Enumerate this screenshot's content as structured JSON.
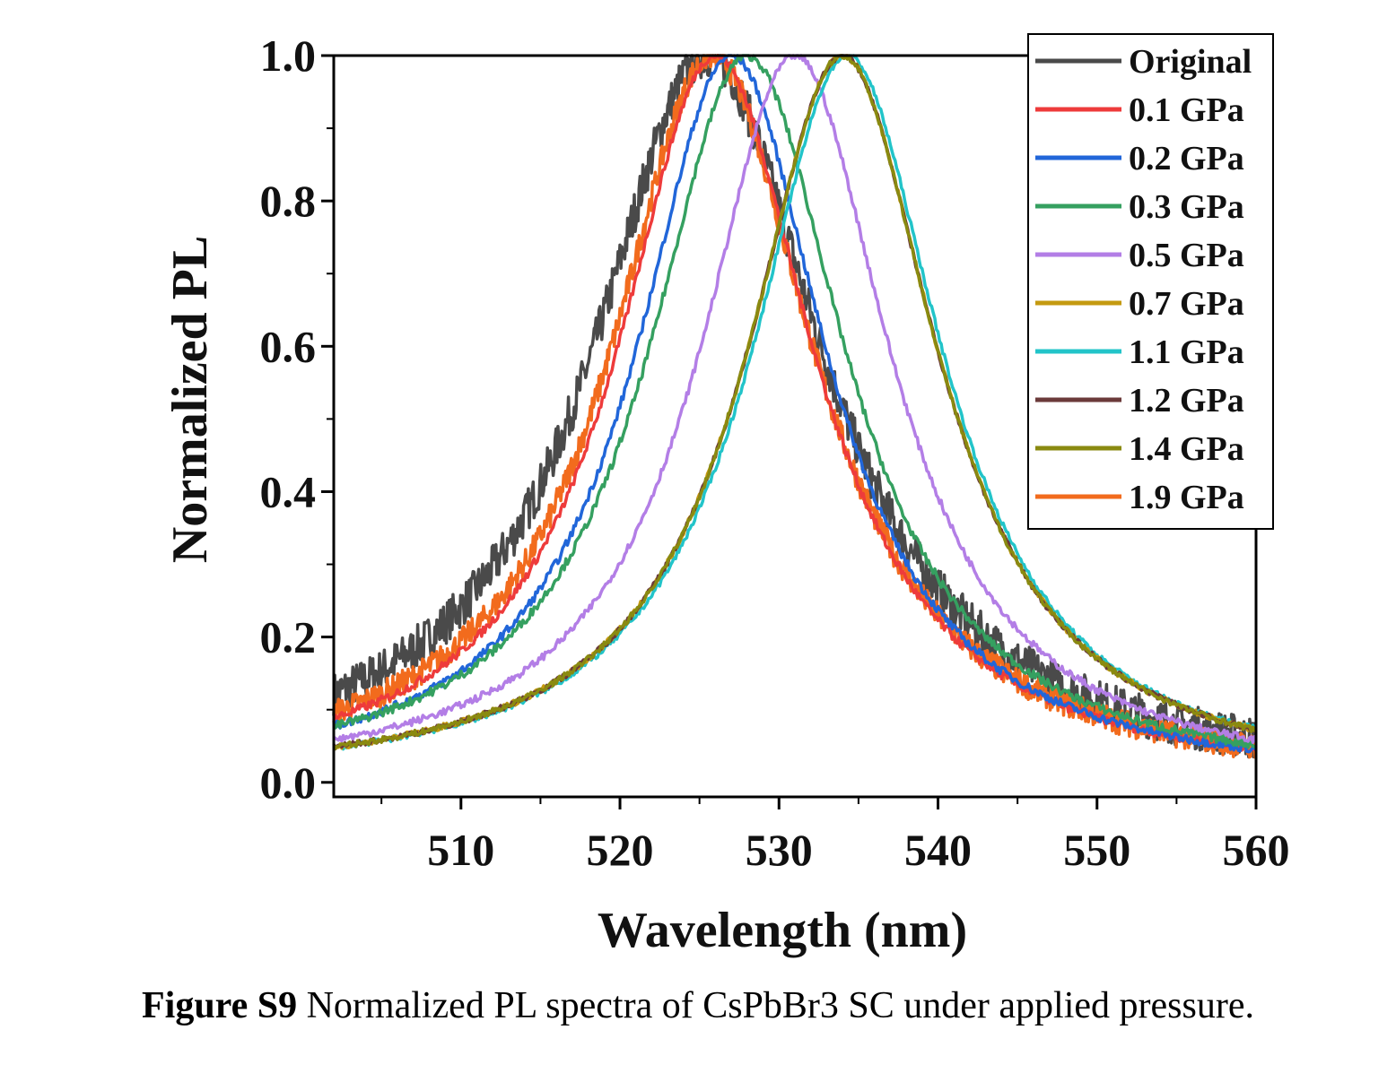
{
  "chart_data": {
    "type": "line",
    "title": "",
    "xlabel": "Wavelength (nm)",
    "ylabel": "Normalized PL",
    "xlim": [
      502,
      560
    ],
    "ylim": [
      -0.02,
      1.0
    ],
    "xticks": [
      510,
      520,
      530,
      540,
      550,
      560
    ],
    "xtick_labels": [
      "510",
      "520",
      "530",
      "540",
      "550",
      "560"
    ],
    "yticks": [
      0.0,
      0.2,
      0.4,
      0.6,
      0.8,
      1.0
    ],
    "ytick_labels": [
      "0.0",
      "0.2",
      "0.4",
      "0.6",
      "0.8",
      "1.0"
    ],
    "grid": false,
    "legend_position": "top-right",
    "series": [
      {
        "name": "Original",
        "color": "#4a4a4a",
        "peak": 525.5,
        "fwhm": 17.5,
        "noise": 0.03
      },
      {
        "name": "0.1 GPa",
        "color": "#ee3b3b",
        "peak": 526.0,
        "fwhm": 15.0,
        "noise": 0.006
      },
      {
        "name": "0.2 GPa",
        "color": "#2166d9",
        "peak": 527.0,
        "fwhm": 14.5,
        "noise": 0.006
      },
      {
        "name": "0.3 GPa",
        "color": "#35a060",
        "peak": 528.0,
        "fwhm": 15.0,
        "noise": 0.006
      },
      {
        "name": "0.5 GPa",
        "color": "#b37ee6",
        "peak": 531.0,
        "fwhm": 14.5,
        "noise": 0.005
      },
      {
        "name": "0.7 GPa",
        "color": "#c49a10",
        "peak": 534.0,
        "fwhm": 14.5,
        "noise": 0.004
      },
      {
        "name": "1.1 GPa",
        "color": "#22c4c9",
        "peak": 534.3,
        "fwhm": 14.5,
        "noise": 0.004
      },
      {
        "name": "1.2 GPa",
        "color": "#6b3a3a",
        "peak": 534.0,
        "fwhm": 14.5,
        "noise": 0.004
      },
      {
        "name": "1.4 GPa",
        "color": "#8a8a10",
        "peak": 534.0,
        "fwhm": 14.5,
        "noise": 0.004
      },
      {
        "name": "1.9 GPa",
        "color": "#f26b1d",
        "peak": 525.8,
        "fwhm": 15.5,
        "noise": 0.018
      }
    ]
  },
  "caption": {
    "label": "Figure S9",
    "text": " Normalized PL spectra of CsPbBr3 SC under applied pressure."
  }
}
